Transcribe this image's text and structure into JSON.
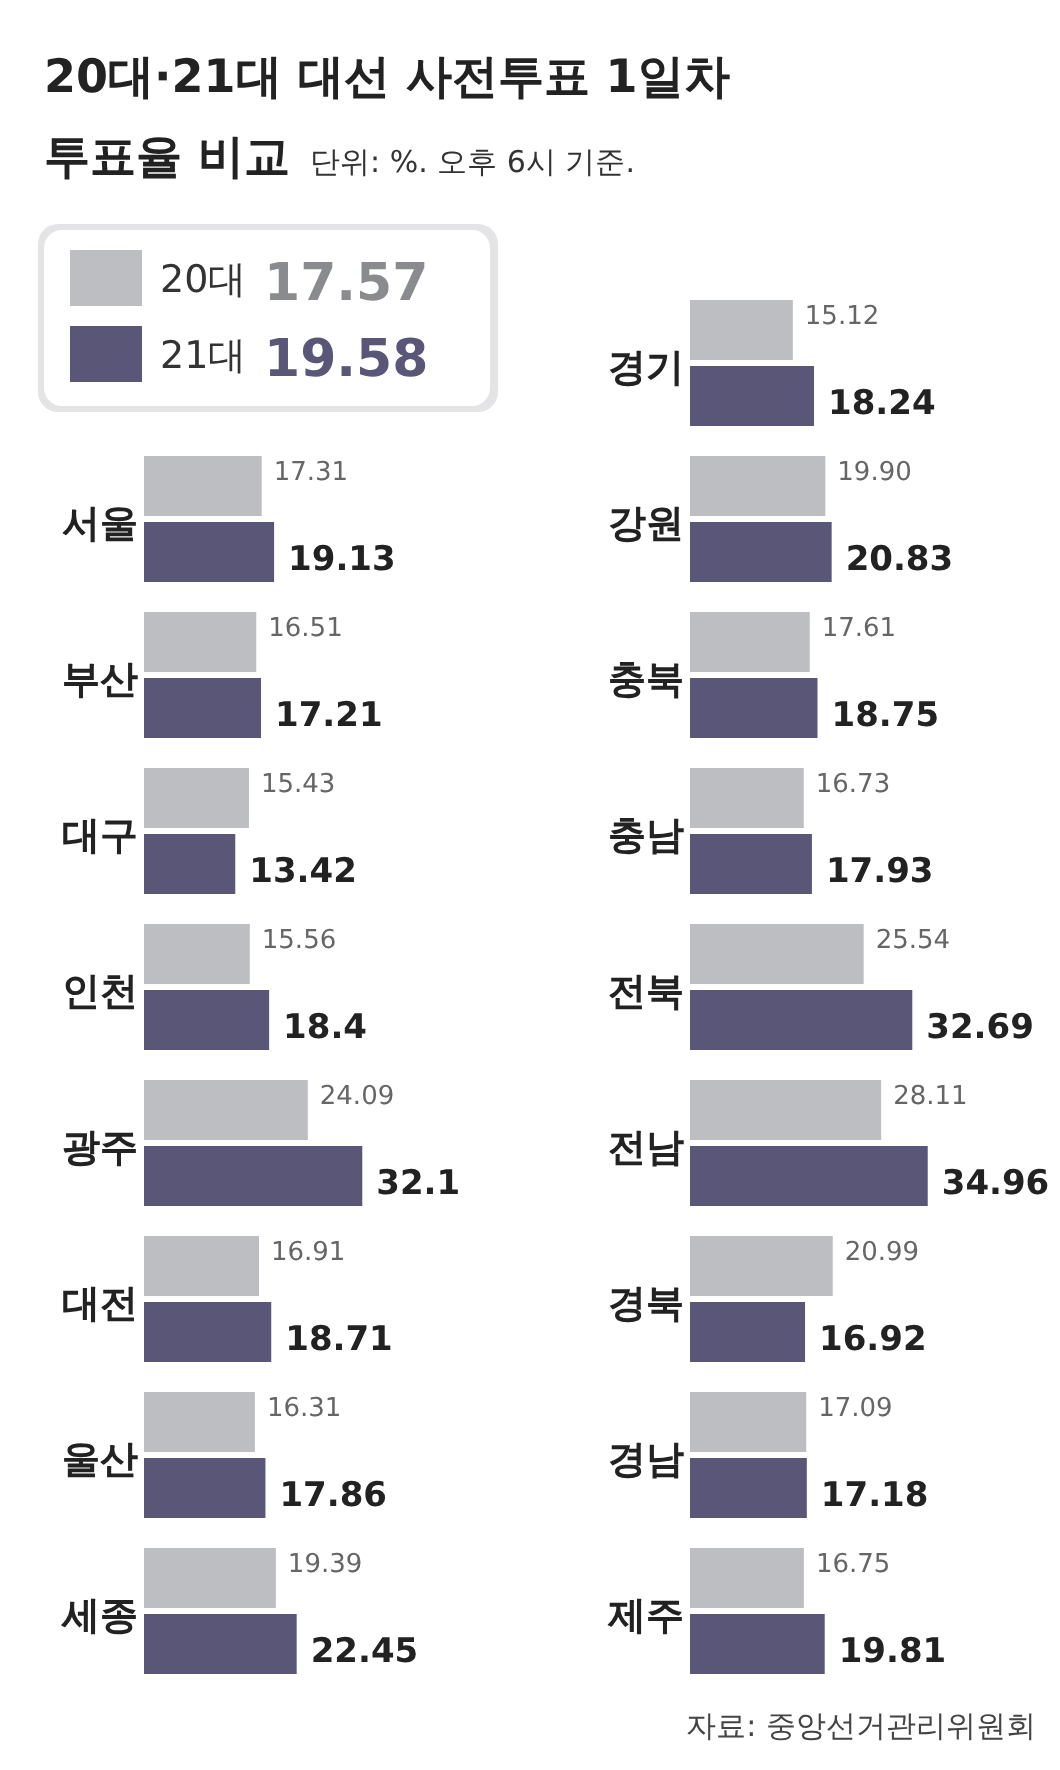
{
  "chart_data": [
    {
      "type": "bar",
      "orientation": "horizontal",
      "title": "20대·21대 대선 사전투표 1일차 투표율 비교",
      "subtitle": "단위: %. 오후 6시 기준.",
      "legend": "top left",
      "data_labels": true,
      "annotations": [
        "17.57",
        "19.58",
        "자료: 중앙선거관리위원회"
      ],
      "categories": [
        "서울",
        "부산",
        "대구",
        "인천",
        "광주",
        "대전",
        "울산",
        "세종"
      ],
      "series": [
        {
          "name": "20대",
          "color": "#bdbec1",
          "values": [
            17.31,
            16.51,
            15.43,
            15.56,
            24.09,
            16.91,
            16.31,
            19.39
          ]
        },
        {
          "name": "21대",
          "color": "#5a5678",
          "values": [
            19.13,
            17.21,
            13.42,
            18.4,
            32.1,
            18.71,
            17.86,
            22.45
          ]
        }
      ]
    },
    {
      "type": "bar",
      "orientation": "horizontal",
      "categories": [
        "경기",
        "강원",
        "충북",
        "충남",
        "전북",
        "전남",
        "경북",
        "경남",
        "제주"
      ],
      "series": [
        {
          "color": "#bdbec1",
          "values": [
            15.12,
            19.9,
            17.61,
            16.73,
            25.54,
            28.11,
            20.99,
            17.09,
            16.75
          ],
          "value_labels": [
            "15.12",
            "19.90",
            "17.61",
            "16.73",
            "25.54",
            "28.11",
            "20.99",
            "17.09",
            "16.75"
          ]
        },
        {
          "color": "#5a5678",
          "values": [
            18.24,
            20.83,
            18.75,
            17.93,
            32.69,
            34.96,
            16.92,
            17.18,
            19.81
          ],
          "value_labels": [
            "18.24",
            "20.83",
            "18.75",
            "17.93",
            "32.69",
            "34.96",
            "16.92",
            "17.18",
            "19.81"
          ]
        }
      ]
    }
  ]
}
